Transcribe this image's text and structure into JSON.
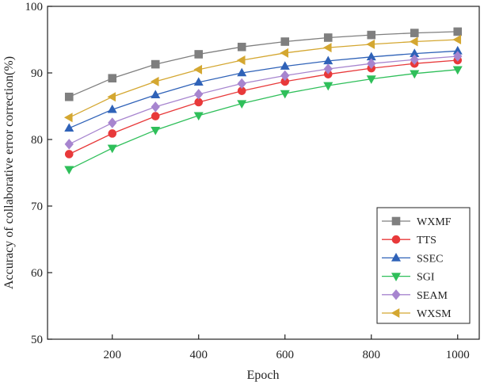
{
  "chart_data": {
    "type": "line",
    "title": "",
    "xlabel": "Epoch",
    "ylabel": "Accuracy of collaborative error correction(%)",
    "x": [
      100,
      200,
      300,
      400,
      500,
      600,
      700,
      800,
      900,
      1000
    ],
    "xlim": [
      50,
      1050
    ],
    "ylim": [
      50,
      100
    ],
    "xticks": [
      200,
      400,
      600,
      800,
      1000
    ],
    "yticks": [
      50,
      60,
      70,
      80,
      90,
      100
    ],
    "xtick_labels": [
      "200",
      "400",
      "600",
      "800",
      "1000"
    ],
    "ytick_labels": [
      "50",
      "60",
      "70",
      "80",
      "90",
      "100"
    ],
    "grid": false,
    "legend_position": "bottom-right",
    "series": [
      {
        "name": "WXMF",
        "marker": "square",
        "color": "#7f7f7f",
        "values": [
          86.4,
          89.2,
          91.3,
          92.8,
          93.9,
          94.7,
          95.3,
          95.7,
          96.0,
          96.2
        ]
      },
      {
        "name": "TTS",
        "marker": "circle",
        "color": "#e8393a",
        "values": [
          77.8,
          80.9,
          83.5,
          85.6,
          87.3,
          88.7,
          89.8,
          90.7,
          91.4,
          91.9
        ]
      },
      {
        "name": "SSEC",
        "marker": "triangle-up",
        "color": "#2f62b8",
        "values": [
          81.7,
          84.5,
          86.7,
          88.6,
          90.0,
          91.0,
          91.8,
          92.4,
          92.9,
          93.3
        ]
      },
      {
        "name": "SGI",
        "marker": "triangle-down",
        "color": "#2fbf5a",
        "values": [
          75.5,
          78.7,
          81.4,
          83.6,
          85.4,
          86.9,
          88.1,
          89.1,
          89.9,
          90.5
        ]
      },
      {
        "name": "SEAM",
        "marker": "diamond",
        "color": "#a785cf",
        "values": [
          79.3,
          82.5,
          84.9,
          86.8,
          88.4,
          89.6,
          90.6,
          91.4,
          92.0,
          92.5
        ]
      },
      {
        "name": "WXSM",
        "marker": "triangle-left",
        "color": "#d4a731",
        "values": [
          83.3,
          86.4,
          88.7,
          90.5,
          91.9,
          93.0,
          93.8,
          94.3,
          94.7,
          95.0
        ]
      }
    ]
  }
}
